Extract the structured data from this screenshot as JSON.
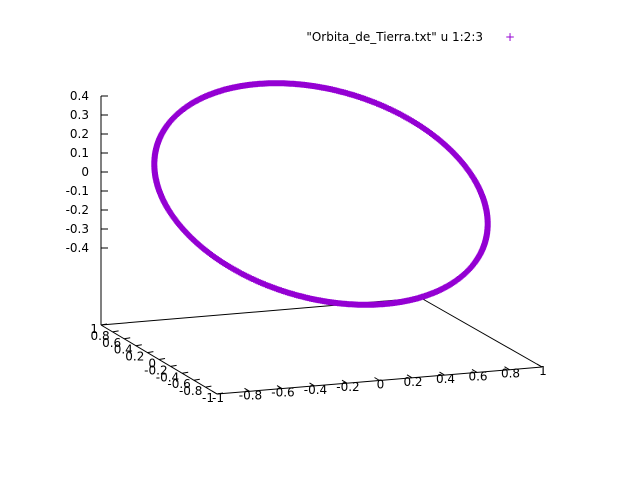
{
  "chart_data": {
    "type": "scatter",
    "dimensions": 3,
    "legend": {
      "label": "\"Orbita_de_Tierra.txt\" u 1:2:3",
      "marker": "+",
      "placement": "top-right"
    },
    "series": [
      {
        "name": "\"Orbita_de_Tierra.txt\" u 1:2:3",
        "color": "#9400d3",
        "marker": "+",
        "shape": "closed orbit (ellipse)",
        "sample_points": [
          [
            1.0,
            0.0,
            -0.05
          ],
          [
            0.71,
            0.71,
            0.1
          ],
          [
            0.0,
            1.0,
            0.2
          ],
          [
            -0.71,
            0.71,
            0.32
          ],
          [
            -1.0,
            0.0,
            0.4
          ],
          [
            -0.71,
            -0.71,
            0.28
          ],
          [
            0.0,
            -1.0,
            0.05
          ],
          [
            0.71,
            -0.71,
            -0.15
          ]
        ]
      }
    ],
    "axes": {
      "x": {
        "range": [
          -1,
          1
        ],
        "ticks": [
          "-1",
          "-0.8",
          "-0.6",
          "-0.4",
          "-0.2",
          "0",
          "0.2",
          "0.4",
          "0.6",
          "0.8",
          "1"
        ]
      },
      "y": {
        "range": [
          -1,
          1
        ],
        "ticks": [
          "-1",
          "-0.8",
          "-0.6",
          "-0.4",
          "-0.2",
          "0",
          "0.2",
          "0.4",
          "0.6",
          "0.8",
          "1"
        ]
      },
      "z": {
        "ticks": [
          "0.4",
          "0.3",
          "0.2",
          "0.1",
          "0",
          "-0.1",
          "-0.2",
          "-0.3",
          "-0.4"
        ]
      }
    },
    "grid": false
  }
}
